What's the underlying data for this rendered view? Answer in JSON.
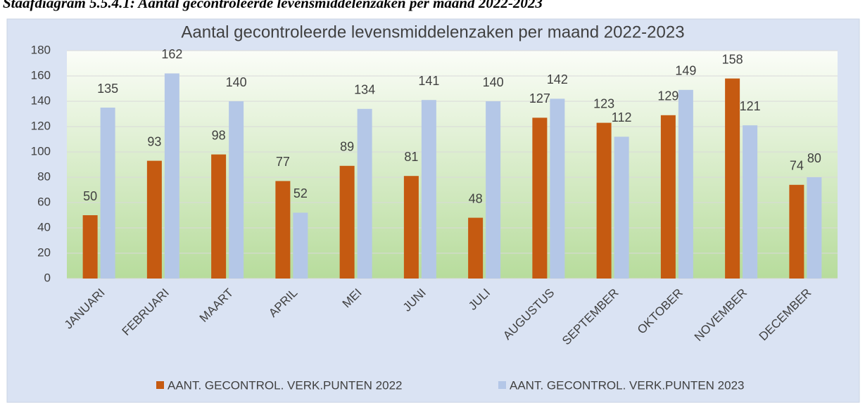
{
  "caption": "Staafdiagram 5.5.4.1: Aantal gecontroleerde levensmiddelenzaken per maand 2022-2023",
  "chart_data": {
    "type": "bar",
    "title": "Aantal gecontroleerde levensmiddelenzaken per maand 2022-2023",
    "categories": [
      "JANUARI",
      "FEBRUARI",
      "MAART",
      "APRIL",
      "MEI",
      "JUNI",
      "JULI",
      "AUGUSTUS",
      "SEPTEMBER",
      "OKTOBER",
      "NOVEMBER",
      "DECEMBER"
    ],
    "series": [
      {
        "name": "AANT. GECONTROL. VERK.PUNTEN 2022",
        "color": "#c55a11",
        "values": [
          50,
          93,
          98,
          77,
          89,
          81,
          48,
          127,
          123,
          129,
          158,
          74
        ]
      },
      {
        "name": "AANT. GECONTROL. VERK.PUNTEN 2023",
        "color": "#b4c7e7",
        "values": [
          135,
          162,
          140,
          52,
          134,
          141,
          140,
          142,
          112,
          149,
          121,
          80
        ]
      }
    ],
    "ylim": [
      0,
      180
    ],
    "yticks": [
      0,
      20,
      40,
      60,
      80,
      100,
      120,
      140,
      160,
      180
    ],
    "grid": true,
    "legend": "bottom"
  }
}
